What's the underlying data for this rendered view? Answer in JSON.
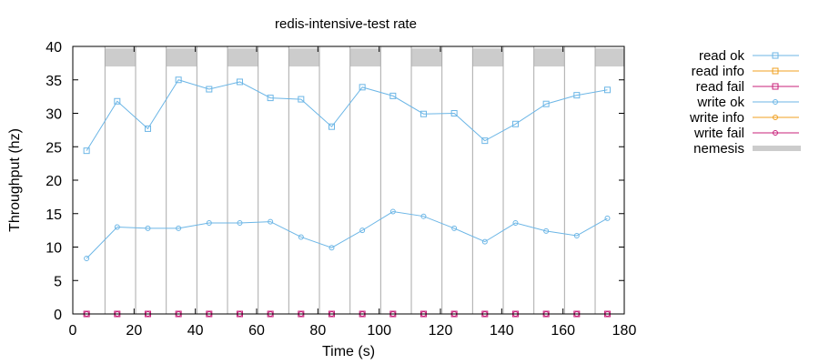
{
  "chart_data": {
    "type": "line",
    "title": "redis-intensive-test rate",
    "xlabel": "Time (s)",
    "ylabel": "Throughput (hz)",
    "xlim": [
      0,
      180
    ],
    "ylim": [
      0,
      40
    ],
    "xticks": [
      0,
      20,
      40,
      60,
      80,
      100,
      120,
      140,
      160,
      180
    ],
    "yticks": [
      0,
      5,
      10,
      15,
      20,
      25,
      30,
      35,
      40
    ],
    "grid": false,
    "legend_position": "outside-right",
    "colors": {
      "ok": "#6cb6e6",
      "info": "#f0a020",
      "fail": "#c8207a",
      "nemesis": "#cccccc",
      "nemesis_line": "#aaaaaa"
    },
    "series": [
      {
        "name": "read ok",
        "marker": "square",
        "color": "#6cb6e6",
        "x": [
          4.5,
          14.5,
          24.5,
          34.5,
          44.5,
          54.5,
          64.5,
          74.5,
          84.5,
          94.5,
          104.5,
          114.5,
          124.5,
          134.5,
          144.5,
          154.5,
          164.5,
          174.5
        ],
        "y": [
          24.4,
          31.8,
          27.7,
          35.0,
          33.6,
          34.7,
          32.3,
          32.1,
          28.0,
          33.9,
          32.6,
          29.9,
          30.0,
          25.9,
          28.4,
          31.4,
          32.7,
          33.5
        ]
      },
      {
        "name": "read info",
        "marker": "square",
        "color": "#f0a020",
        "x": [],
        "y": []
      },
      {
        "name": "read fail",
        "marker": "square",
        "color": "#c8207a",
        "x": [
          4.5,
          14.5,
          24.5,
          34.5,
          44.5,
          54.5,
          64.5,
          74.5,
          84.5,
          94.5,
          104.5,
          114.5,
          124.5,
          134.5,
          144.5,
          154.5,
          164.5,
          174.5
        ],
        "y": [
          0,
          0,
          0,
          0,
          0,
          0,
          0,
          0,
          0,
          0,
          0,
          0,
          0,
          0,
          0,
          0,
          0,
          0
        ]
      },
      {
        "name": "write ok",
        "marker": "circle",
        "color": "#6cb6e6",
        "x": [
          4.5,
          14.5,
          24.5,
          34.5,
          44.5,
          54.5,
          64.5,
          74.5,
          84.5,
          94.5,
          104.5,
          114.5,
          124.5,
          134.5,
          144.5,
          154.5,
          164.5,
          174.5
        ],
        "y": [
          8.3,
          13.0,
          12.8,
          12.8,
          13.6,
          13.6,
          13.8,
          11.5,
          9.9,
          12.5,
          15.3,
          14.6,
          12.8,
          10.8,
          13.6,
          12.4,
          11.7,
          14.3
        ]
      },
      {
        "name": "write info",
        "marker": "circle",
        "color": "#f0a020",
        "x": [],
        "y": []
      },
      {
        "name": "write fail",
        "marker": "circle",
        "color": "#c8207a",
        "x": [
          4.5,
          14.5,
          24.5,
          34.5,
          44.5,
          54.5,
          64.5,
          74.5,
          84.5,
          94.5,
          104.5,
          114.5,
          124.5,
          134.5,
          144.5,
          154.5,
          164.5,
          174.5
        ],
        "y": [
          0,
          0,
          0,
          0,
          0,
          0,
          0,
          0,
          0,
          0,
          0,
          0,
          0,
          0,
          0,
          0,
          0,
          0
        ]
      }
    ],
    "nemesis": {
      "name": "nemesis",
      "intervals": [
        [
          10.5,
          20.5
        ],
        [
          30.5,
          40.5
        ],
        [
          50.5,
          60.5
        ],
        [
          70.5,
          80.5
        ],
        [
          90.5,
          100.5
        ],
        [
          110.5,
          120.5
        ],
        [
          130.5,
          140.5
        ],
        [
          150.5,
          160.5
        ],
        [
          170.5,
          180
        ]
      ],
      "bar_range": [
        37,
        39.7
      ]
    }
  }
}
